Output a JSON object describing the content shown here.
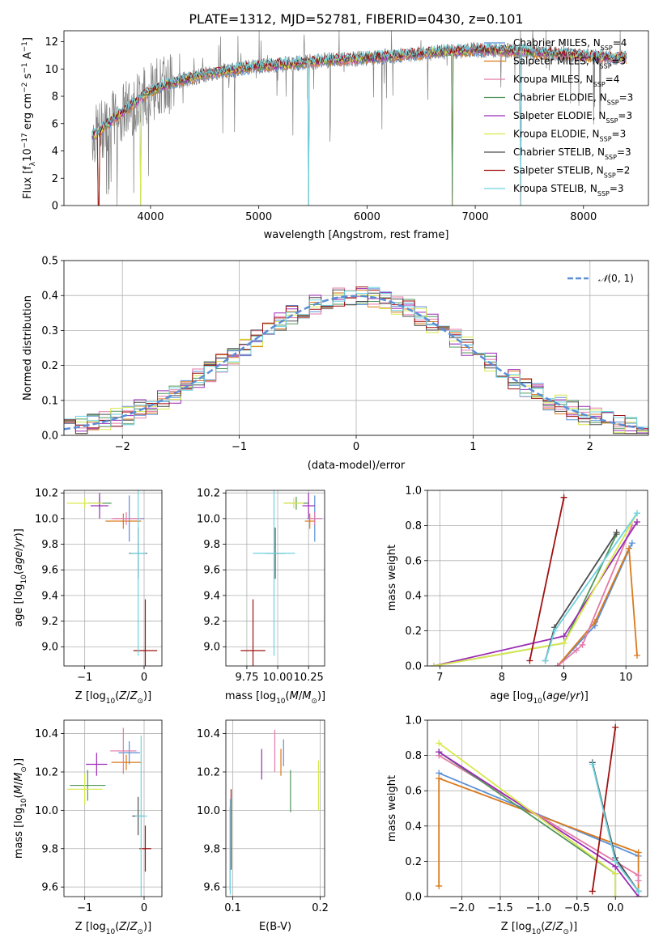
{
  "title": "PLATE=1312, MJD=52781, FIBERID=0430, z=0.101",
  "colors": [
    "#5a8fd6",
    "#d97a1c",
    "#e37aa8",
    "#52965c",
    "#9b2bb5",
    "#d8e84a",
    "#4d4d4d",
    "#a01010",
    "#6fd3e0"
  ],
  "chart_data": [
    {
      "id": "spectrum",
      "type": "line",
      "xlabel": "wavelength [Angstrom, rest frame]",
      "ylabel": "Flux [f_λ 10^-17 erg cm^-2 s^-1 A^-1]",
      "xlim": [
        3200,
        8600
      ],
      "ylim": [
        0,
        12.8
      ],
      "xticks": [
        4000,
        5000,
        6000,
        7000,
        8000
      ],
      "yticks": [
        0,
        2,
        4,
        6,
        8,
        10,
        12
      ],
      "grid": false,
      "legend": "top-right",
      "data_approx": {
        "x": [
          3500,
          3600,
          3800,
          4000,
          4200,
          4500,
          4800,
          5000,
          5300,
          5600,
          6000,
          6300,
          6600,
          7000,
          7400,
          7800,
          8300
        ],
        "y": [
          5.2,
          6.0,
          7.2,
          8.4,
          9.0,
          9.6,
          10.0,
          10.2,
          10.4,
          10.6,
          10.8,
          11.0,
          11.2,
          11.4,
          11.3,
          11.1,
          10.8
        ]
      },
      "series": [
        {
          "name": "Chabrier MILES, N_SSP=4",
          "nssp": "4",
          "color": "#5a8fd6"
        },
        {
          "name": "Salpeter MILES, N_SSP=3",
          "nssp": "3",
          "color": "#d97a1c"
        },
        {
          "name": "Kroupa MILES, N_SSP=4",
          "nssp": "4",
          "color": "#e37aa8"
        },
        {
          "name": "Chabrier ELODIE, N_SSP=3",
          "nssp": "3",
          "color": "#52965c"
        },
        {
          "name": "Salpeter ELODIE, N_SSP=3",
          "nssp": "3",
          "color": "#9b2bb5"
        },
        {
          "name": "Kroupa ELODIE, N_SSP=3",
          "nssp": "3",
          "color": "#d8e84a"
        },
        {
          "name": "Chabrier STELIB, N_SSP=3",
          "nssp": "3",
          "color": "#4d4d4d"
        },
        {
          "name": "Salpeter STELIB, N_SSP=2",
          "nssp": "2",
          "color": "#a01010"
        },
        {
          "name": "Kroupa STELIB, N_SSP=3",
          "nssp": "3",
          "color": "#6fd3e0"
        }
      ],
      "legend_entries": [
        {
          "model": "Chabrier MILES, N",
          "sub": "SSP",
          "eq": "=4"
        },
        {
          "model": "Salpeter MILES, N",
          "sub": "SSP",
          "eq": "=3"
        },
        {
          "model": "Kroupa MILES, N",
          "sub": "SSP",
          "eq": "=4"
        },
        {
          "model": "Chabrier ELODIE, N",
          "sub": "SSP",
          "eq": "=3"
        },
        {
          "model": "Salpeter ELODIE, N",
          "sub": "SSP",
          "eq": "=3"
        },
        {
          "model": "Kroupa ELODIE, N",
          "sub": "SSP",
          "eq": "=3"
        },
        {
          "model": "Chabrier STELIB, N",
          "sub": "SSP",
          "eq": "=3"
        },
        {
          "model": "Salpeter STELIB, N",
          "sub": "SSP",
          "eq": "=2"
        },
        {
          "model": "Kroupa STELIB, N",
          "sub": "SSP",
          "eq": "=3"
        }
      ]
    },
    {
      "id": "residuals",
      "type": "line",
      "xlabel": "(data-model)/error",
      "ylabel": "Normed distribution",
      "xlim": [
        -2.5,
        2.5
      ],
      "ylim": [
        0,
        0.5
      ],
      "xticks": [
        -2,
        -1,
        0,
        1,
        2
      ],
      "yticks": [
        0.0,
        0.1,
        0.2,
        0.3,
        0.4,
        0.5
      ],
      "grid": true,
      "legend": "top-right",
      "legend_label": "N(0,1)",
      "gaussian": {
        "mean": 0,
        "sigma": 1,
        "color": "#5a8fd6"
      },
      "bins": 50
    },
    {
      "id": "age_vs_Z",
      "type": "scatter",
      "xlabel": "Z [log10(Z/Z⊙)]",
      "ylabel": "age [log10(age/yr)]",
      "xlim": [
        -1.35,
        0.3
      ],
      "ylim": [
        8.85,
        10.22
      ],
      "xticks": [
        -1,
        0
      ],
      "yticks": [
        9.0,
        9.2,
        9.4,
        9.6,
        9.8,
        10.0,
        10.2
      ],
      "grid": true,
      "points": [
        {
          "x": -0.25,
          "y": 10.0,
          "xe": 0.25,
          "ye": 0.18,
          "color": "#5a8fd6"
        },
        {
          "x": -0.35,
          "y": 9.98,
          "xe": 0.3,
          "ye": 0.06,
          "color": "#d97a1c"
        },
        {
          "x": -0.3,
          "y": 10.0,
          "xe": 0.25,
          "ye": 0.05,
          "color": "#e37aa8"
        },
        {
          "x": -0.75,
          "y": 10.12,
          "xe": 0.2,
          "ye": 0.05,
          "color": "#52965c"
        },
        {
          "x": -0.75,
          "y": 10.1,
          "xe": 0.15,
          "ye": 0.1,
          "color": "#9b2bb5"
        },
        {
          "x": -1.0,
          "y": 10.12,
          "xe": 0.3,
          "ye": 0.04,
          "color": "#d8e84a"
        },
        {
          "x": -0.1,
          "y": 9.73,
          "xe": 0.15,
          "ye": 0.2,
          "color": "#4d4d4d"
        },
        {
          "x": 0.02,
          "y": 8.97,
          "xe": 0.2,
          "ye": 0.4,
          "color": "#a01010"
        },
        {
          "x": -0.1,
          "y": 9.73,
          "xe": 0.13,
          "ye": 0.8,
          "color": "#6fd3e0"
        }
      ]
    },
    {
      "id": "age_vs_mass",
      "type": "scatter",
      "xlabel": "mass [log10(M/M⊙)]",
      "ylabel": "",
      "xlim": [
        9.58,
        10.38
      ],
      "ylim": [
        8.85,
        10.22
      ],
      "xticks": [
        9.75,
        10.0,
        10.25
      ],
      "xticklabels": [
        "9.75",
        "10.00",
        "10.25"
      ],
      "yticks": [
        9.0,
        9.2,
        9.4,
        9.6,
        9.8,
        10.0,
        10.2
      ],
      "grid": true,
      "points": [
        {
          "x": 10.3,
          "y": 10.0,
          "xe": 0.06,
          "ye": 0.18,
          "color": "#5a8fd6"
        },
        {
          "x": 10.26,
          "y": 9.98,
          "xe": 0.04,
          "ye": 0.06,
          "color": "#d97a1c"
        },
        {
          "x": 10.3,
          "y": 10.0,
          "xe": 0.05,
          "ye": 0.05,
          "color": "#e37aa8"
        },
        {
          "x": 10.15,
          "y": 10.12,
          "xe": 0.1,
          "ye": 0.05,
          "color": "#52965c"
        },
        {
          "x": 10.25,
          "y": 10.1,
          "xe": 0.05,
          "ye": 0.1,
          "color": "#9b2bb5"
        },
        {
          "x": 10.13,
          "y": 10.12,
          "xe": 0.08,
          "ye": 0.04,
          "color": "#d8e84a"
        },
        {
          "x": 9.98,
          "y": 9.73,
          "xe": 0.08,
          "ye": 0.2,
          "color": "#4d4d4d"
        },
        {
          "x": 9.8,
          "y": 8.97,
          "xe": 0.1,
          "ye": 0.4,
          "color": "#a01010"
        },
        {
          "x": 9.97,
          "y": 9.73,
          "xe": 0.17,
          "ye": 0.8,
          "color": "#6fd3e0"
        }
      ]
    },
    {
      "id": "massweight_vs_age",
      "type": "line",
      "xlabel": "age [log10(age/yr)]",
      "ylabel": "mass weight",
      "xlim": [
        6.8,
        10.35
      ],
      "ylim": [
        0,
        1.0
      ],
      "xticks": [
        7,
        8,
        9,
        10
      ],
      "yticks": [
        0.0,
        0.2,
        0.4,
        0.6,
        0.8,
        1.0
      ],
      "grid": true,
      "series": [
        {
          "color": "#5a8fd6",
          "x": [
            8.9,
            9.5,
            10.1
          ],
          "y": [
            0.0,
            0.23,
            0.7
          ]
        },
        {
          "color": "#d97a1c",
          "x": [
            8.9,
            9.5,
            10.05,
            10.18
          ],
          "y": [
            0.0,
            0.25,
            0.67,
            0.06
          ]
        },
        {
          "color": "#e37aa8",
          "x": [
            8.9,
            9.2,
            9.3,
            10.1
          ],
          "y": [
            0.0,
            0.09,
            0.12,
            0.8
          ]
        },
        {
          "color": "#52965c",
          "x": [
            6.9,
            9.0,
            9.85
          ],
          "y": [
            0.0,
            0.13,
            0.75
          ]
        },
        {
          "color": "#9b2bb5",
          "x": [
            6.9,
            9.0,
            10.18
          ],
          "y": [
            0.0,
            0.17,
            0.82
          ]
        },
        {
          "color": "#d8e84a",
          "x": [
            6.9,
            9.0,
            10.18
          ],
          "y": [
            0.0,
            0.13,
            0.87
          ]
        },
        {
          "color": "#4d4d4d",
          "x": [
            8.7,
            8.85,
            9.85
          ],
          "y": [
            0.03,
            0.22,
            0.76
          ]
        },
        {
          "color": "#a01010",
          "x": [
            8.45,
            9.0
          ],
          "y": [
            0.03,
            0.96
          ]
        },
        {
          "color": "#6fd3e0",
          "x": [
            8.7,
            8.85,
            10.18
          ],
          "y": [
            0.03,
            0.2,
            0.87
          ]
        }
      ]
    },
    {
      "id": "mass_vs_Z",
      "type": "scatter",
      "xlabel": "Z [log10(Z/Z⊙)]",
      "ylabel": "mass [log10(M/M⊙)]",
      "xlim": [
        -1.35,
        0.3
      ],
      "ylim": [
        9.55,
        10.47
      ],
      "xticks": [
        -1,
        0
      ],
      "yticks": [
        9.6,
        9.8,
        10.0,
        10.2,
        10.4
      ],
      "grid": true,
      "points": [
        {
          "x": -0.25,
          "y": 10.3,
          "xe": 0.18,
          "ye": 0.06,
          "color": "#5a8fd6"
        },
        {
          "x": -0.3,
          "y": 10.25,
          "xe": 0.25,
          "ye": 0.04,
          "color": "#d97a1c"
        },
        {
          "x": -0.35,
          "y": 10.31,
          "xe": 0.22,
          "ye": 0.12,
          "color": "#e37aa8"
        },
        {
          "x": -0.95,
          "y": 10.13,
          "xe": 0.3,
          "ye": 0.08,
          "color": "#52965c"
        },
        {
          "x": -0.8,
          "y": 10.24,
          "xe": 0.18,
          "ye": 0.06,
          "color": "#9b2bb5"
        },
        {
          "x": -1.0,
          "y": 10.11,
          "xe": 0.3,
          "ye": 0.08,
          "color": "#d8e84a"
        },
        {
          "x": -0.1,
          "y": 9.97,
          "xe": 0.1,
          "ye": 0.1,
          "color": "#4d4d4d"
        },
        {
          "x": 0.02,
          "y": 9.8,
          "xe": 0.1,
          "ye": 0.12,
          "color": "#a01010"
        },
        {
          "x": -0.05,
          "y": 9.97,
          "xe": 0.1,
          "ye": 0.42,
          "color": "#6fd3e0"
        }
      ]
    },
    {
      "id": "mass_vs_EBV",
      "type": "scatter",
      "xlabel": "E(B-V)",
      "ylabel": "",
      "xlim": [
        0.092,
        0.205
      ],
      "ylim": [
        9.55,
        10.47
      ],
      "xticks": [
        0.1,
        0.2
      ],
      "yticks": [
        9.6,
        9.8,
        10.0,
        10.2,
        10.4
      ],
      "grid": true,
      "points": [
        {
          "x": 0.158,
          "y": 10.3,
          "ye": 0.07,
          "color": "#5a8fd6"
        },
        {
          "x": 0.155,
          "y": 10.25,
          "ye": 0.07,
          "color": "#d97a1c"
        },
        {
          "x": 0.148,
          "y": 10.31,
          "ye": 0.11,
          "color": "#e37aa8"
        },
        {
          "x": 0.166,
          "y": 10.1,
          "ye": 0.11,
          "color": "#52965c"
        },
        {
          "x": 0.133,
          "y": 10.24,
          "ye": 0.08,
          "color": "#9b2bb5"
        },
        {
          "x": 0.198,
          "y": 10.13,
          "ye": 0.13,
          "color": "#d8e84a"
        },
        {
          "x": 0.097,
          "y": 9.8,
          "ye": 0.22,
          "color": "#4d4d4d"
        },
        {
          "x": 0.098,
          "y": 9.9,
          "ye": 0.21,
          "color": "#a01010"
        },
        {
          "x": 0.097,
          "y": 9.81,
          "ye": 0.25,
          "color": "#6fd3e0"
        }
      ]
    },
    {
      "id": "massweight_vs_Z",
      "type": "line",
      "xlabel": "Z [log10(Z/Z⊙)]",
      "ylabel": "mass weight",
      "xlim": [
        -2.45,
        0.42
      ],
      "ylim": [
        0,
        1.0
      ],
      "xticks": [
        -2.0,
        -1.5,
        -1.0,
        -0.5,
        0.0
      ],
      "yticks": [
        0.0,
        0.2,
        0.4,
        0.6,
        0.8,
        1.0
      ],
      "grid": true,
      "series": [
        {
          "color": "#5a8fd6",
          "x": [
            -2.3,
            0.3
          ],
          "y": [
            0.7,
            0.23
          ]
        },
        {
          "color": "#d97a1c",
          "x": [
            -2.3,
            -2.3,
            0.3,
            0.3
          ],
          "y": [
            0.06,
            0.67,
            0.25,
            0.0
          ]
        },
        {
          "color": "#e37aa8",
          "x": [
            -2.3,
            0.3,
            0.3
          ],
          "y": [
            0.8,
            0.12,
            0.09
          ]
        },
        {
          "color": "#52965c",
          "x": [
            -2.3,
            0.0,
            0.0
          ],
          "y": [
            0.82,
            0.13,
            0.0
          ]
        },
        {
          "color": "#9b2bb5",
          "x": [
            -2.3,
            0.0,
            0.3
          ],
          "y": [
            0.82,
            0.17,
            0.0
          ]
        },
        {
          "color": "#d8e84a",
          "x": [
            -2.3,
            0.0,
            0.0
          ],
          "y": [
            0.87,
            0.13,
            0.0
          ]
        },
        {
          "color": "#4d4d4d",
          "x": [
            -0.3,
            0.0,
            0.3
          ],
          "y": [
            0.76,
            0.22,
            0.03
          ]
        },
        {
          "color": "#a01010",
          "x": [
            -0.3,
            0.0
          ],
          "y": [
            0.03,
            0.96
          ]
        },
        {
          "color": "#6fd3e0",
          "x": [
            -0.3,
            0.0,
            0.3
          ],
          "y": [
            0.75,
            0.2,
            0.03
          ]
        }
      ]
    }
  ]
}
